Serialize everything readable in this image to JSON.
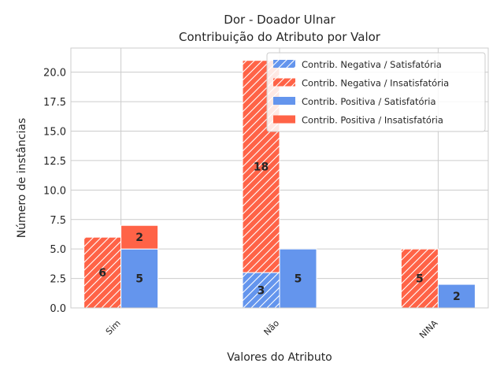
{
  "chart_data": {
    "type": "bar",
    "title": "Dor - Doador Ulnar",
    "subtitle": "Contribuição do Atributo por Valor",
    "xlabel": "Valores do Atributo",
    "ylabel": "Número de instâncias",
    "categories": [
      "Sim",
      "Não",
      "NINA"
    ],
    "ylim": [
      0,
      22.05
    ],
    "yticks": [
      "0.0",
      "2.5",
      "5.0",
      "7.5",
      "10.0",
      "12.5",
      "15.0",
      "17.5",
      "20.0"
    ],
    "grid": true,
    "legend_position": "top-right",
    "series": [
      {
        "name": "Contrib. Negativa / Satisfatória",
        "group": "negativa",
        "pattern": "hatch",
        "color": "#6495ed",
        "values": [
          0,
          3,
          0
        ]
      },
      {
        "name": "Contrib. Negativa / Insatisfatória",
        "group": "negativa",
        "pattern": "hatch",
        "color": "#ff6347",
        "values": [
          6,
          18,
          5
        ]
      },
      {
        "name": "Contrib. Positiva / Satisfatória",
        "group": "positiva",
        "pattern": "solid",
        "color": "#6495ed",
        "values": [
          5,
          5,
          2
        ]
      },
      {
        "name": "Contrib. Positiva / Insatisfatória",
        "group": "positiva",
        "pattern": "solid",
        "color": "#ff6347",
        "values": [
          2,
          0,
          0
        ]
      }
    ]
  }
}
